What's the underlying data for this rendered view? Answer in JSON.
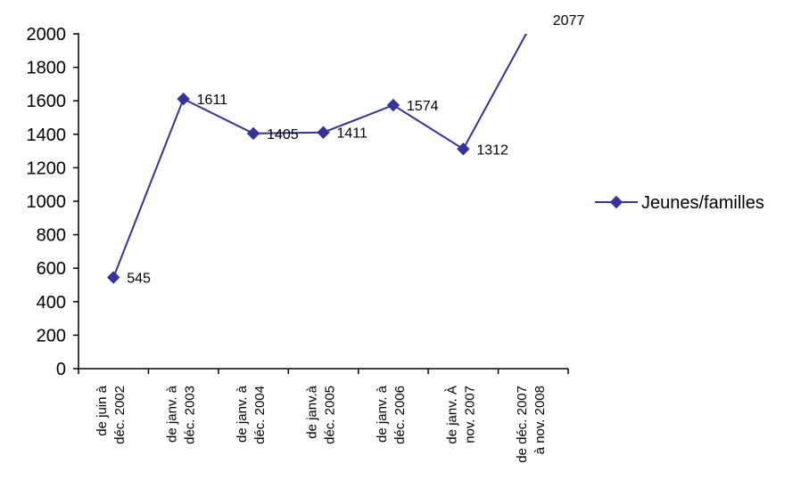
{
  "chart_data": {
    "type": "line",
    "title": "",
    "xlabel": "",
    "ylabel": "",
    "ylim": [
      0,
      2000
    ],
    "ytick_step": 200,
    "categories": [
      [
        "de juin à",
        "déc. 2002"
      ],
      [
        "de janv. à",
        "déc. 2003"
      ],
      [
        "de janv. à",
        "déc. 2004"
      ],
      [
        "de janv.à",
        "déc. 2005"
      ],
      [
        "de janv. à",
        "déc. 2006"
      ],
      [
        "de janv. À",
        "nov. 2007"
      ],
      [
        "de déc. 2007",
        "à nov. 2008"
      ]
    ],
    "series": [
      {
        "name": "Jeunes/familles",
        "values": [
          545,
          1611,
          1405,
          1411,
          1574,
          1312,
          2077
        ],
        "color": "#333399",
        "marker": "diamond"
      }
    ],
    "data_labels": [
      "545",
      "1611",
      "1405",
      "1411",
      "1574",
      "1312",
      "2077"
    ],
    "legend_position": "right",
    "grid": false
  }
}
